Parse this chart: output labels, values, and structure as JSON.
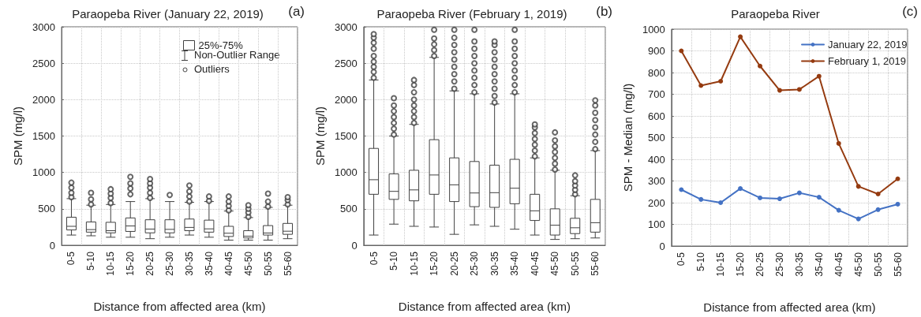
{
  "chart_data": [
    {
      "type": "box",
      "title": "Paraopeba River (January 22, 2019)",
      "xlabel": "Distance from affected area (km)",
      "ylabel": "SPM (mg/l)",
      "categories": [
        "0-5",
        "5-10",
        "10-15",
        "15-20",
        "20-25",
        "25-30",
        "30-35",
        "35-40",
        "40-45",
        "45-50",
        "50-55",
        "55-60"
      ],
      "ylim": [
        0,
        3000
      ],
      "yticks": [
        0,
        500,
        1000,
        1500,
        2000,
        2500,
        3000
      ],
      "grid": true,
      "legend": "top right",
      "annotations": [
        "(a)",
        "Non-Outlier Range",
        "Outliers"
      ],
      "series": [
        {
          "name": "25%-75%",
          "color": "#404040",
          "boxes": [
            {
              "low": 140,
              "q1": 210,
              "median": 260,
              "q3": 385,
              "high": 640,
              "outliers": [
                660,
                720,
                790,
                860
              ]
            },
            {
              "low": 130,
              "q1": 180,
              "median": 215,
              "q3": 320,
              "high": 550,
              "outliers": [
                560,
                630,
                720
              ]
            },
            {
              "low": 110,
              "q1": 170,
              "median": 200,
              "q3": 315,
              "high": 560,
              "outliers": [
                580,
                650,
                710,
                770
              ]
            },
            {
              "low": 110,
              "q1": 190,
              "median": 265,
              "q3": 375,
              "high": 600,
              "outliers": [
                700,
                780,
                850,
                940
              ]
            },
            {
              "low": 90,
              "q1": 170,
              "median": 222,
              "q3": 350,
              "high": 640,
              "outliers": [
                650,
                720,
                790,
                850,
                910
              ]
            },
            {
              "low": 110,
              "q1": 170,
              "median": 218,
              "q3": 350,
              "high": 600,
              "outliers": [
                690
              ]
            },
            {
              "low": 140,
              "q1": 200,
              "median": 245,
              "q3": 360,
              "high": 590,
              "outliers": [
                600,
                670,
                740,
                820
              ]
            },
            {
              "low": 110,
              "q1": 180,
              "median": 225,
              "q3": 345,
              "high": 600,
              "outliers": [
                610,
                670
              ]
            },
            {
              "low": 70,
              "q1": 120,
              "median": 165,
              "q3": 260,
              "high": 470,
              "outliers": [
                480,
                540,
                600,
                670
              ]
            },
            {
              "low": 70,
              "q1": 100,
              "median": 125,
              "q3": 200,
              "high": 380,
              "outliers": [
                390,
                450,
                500,
                550
              ]
            },
            {
              "low": 70,
              "q1": 140,
              "median": 168,
              "q3": 270,
              "high": 520,
              "outliers": [
                530,
                600,
                710
              ]
            },
            {
              "low": 90,
              "q1": 150,
              "median": 193,
              "q3": 300,
              "high": 550,
              "outliers": [
                560,
                620,
                660
              ]
            }
          ]
        }
      ]
    },
    {
      "type": "box",
      "title": "Paraopeba River (February 1, 2019)",
      "xlabel": "Distance from affected area (km)",
      "ylabel": "SPM (mg/l)",
      "categories": [
        "0-5",
        "5-10",
        "10-15",
        "15-20",
        "20-25",
        "25-30",
        "30-35",
        "35-40",
        "40-45",
        "45-50",
        "50-55",
        "55-60"
      ],
      "ylim": [
        0,
        3000
      ],
      "yticks": [
        0,
        500,
        1000,
        1500,
        2000,
        2500,
        3000
      ],
      "grid": true,
      "annotations": [
        "(b)"
      ],
      "series": [
        {
          "color": "#404040",
          "boxes": [
            {
              "low": 140,
              "q1": 700,
              "median": 900,
              "q3": 1330,
              "high": 2270,
              "outliers": [
                2300,
                2380,
                2450,
                2520,
                2600,
                2700,
                2780,
                2850,
                2900
              ]
            },
            {
              "low": 290,
              "q1": 630,
              "median": 740,
              "q3": 980,
              "high": 1500,
              "outliers": [
                1520,
                1600,
                1680,
                1760,
                1840,
                1920,
                2020
              ]
            },
            {
              "low": 260,
              "q1": 610,
              "median": 760,
              "q3": 1030,
              "high": 1660,
              "outliers": [
                1680,
                1760,
                1840,
                1920,
                2000,
                2100,
                2200,
                2270
              ]
            },
            {
              "low": 250,
              "q1": 700,
              "median": 965,
              "q3": 1450,
              "high": 2580,
              "outliers": [
                2600,
                2680,
                2760,
                2840,
                2960
              ]
            },
            {
              "low": 150,
              "q1": 600,
              "median": 830,
              "q3": 1200,
              "high": 2120,
              "outliers": [
                2150,
                2250,
                2350,
                2450,
                2550,
                2650,
                2750,
                2850,
                2960
              ]
            },
            {
              "low": 280,
              "q1": 530,
              "median": 718,
              "q3": 1150,
              "high": 2080,
              "outliers": [
                2100,
                2200,
                2300,
                2400,
                2500,
                2600,
                2700,
                2800,
                2960
              ]
            },
            {
              "low": 260,
              "q1": 520,
              "median": 722,
              "q3": 1100,
              "high": 1940,
              "outliers": [
                1960,
                2050,
                2150,
                2250,
                2350,
                2450,
                2550,
                2650,
                2750,
                2800
              ]
            },
            {
              "low": 220,
              "q1": 570,
              "median": 783,
              "q3": 1180,
              "high": 2080,
              "outliers": [
                2100,
                2200,
                2300,
                2400,
                2500,
                2600,
                2700,
                2800,
                2960
              ]
            },
            {
              "low": 140,
              "q1": 340,
              "median": 473,
              "q3": 700,
              "high": 1200,
              "outliers": [
                1220,
                1300,
                1380,
                1460,
                1540,
                1620,
                1660
              ]
            },
            {
              "low": 80,
              "q1": 140,
              "median": 275,
              "q3": 500,
              "high": 1030,
              "outliers": [
                1040,
                1120,
                1200,
                1280,
                1360,
                1440,
                1550
              ]
            },
            {
              "low": 90,
              "q1": 160,
              "median": 240,
              "q3": 370,
              "high": 680,
              "outliers": [
                700,
                760,
                820,
                880,
                960
              ]
            },
            {
              "low": 100,
              "q1": 180,
              "median": 310,
              "q3": 630,
              "high": 1300,
              "outliers": [
                1320,
                1420,
                1520,
                1620,
                1720,
                1820,
                1920,
                1990
              ]
            }
          ]
        }
      ]
    },
    {
      "type": "line",
      "title": "Paraopeba River",
      "xlabel": "Distance from affected area (km)",
      "ylabel": "SPM - Median (mg/l)",
      "categories": [
        "0-5",
        "5-10",
        "10-15",
        "15-20",
        "20-25",
        "25-30",
        "30-35",
        "35-40",
        "40-45",
        "45-50",
        "50-55",
        "55-60"
      ],
      "ylim": [
        0,
        1000
      ],
      "yticks": [
        0,
        100,
        200,
        300,
        400,
        500,
        600,
        700,
        800,
        900,
        1000
      ],
      "grid": true,
      "legend": "top right",
      "marker": "circle",
      "annotations": [
        "(c)"
      ],
      "series": [
        {
          "name": "January 22, 2019",
          "color": "#4472c4",
          "values": [
            260,
            215,
            200,
            265,
            222,
            218,
            245,
            225,
            165,
            125,
            168,
            193
          ]
        },
        {
          "name": "February 1, 2019",
          "color": "#953b10",
          "values": [
            900,
            740,
            760,
            965,
            830,
            718,
            722,
            783,
            473,
            275,
            240,
            310
          ]
        }
      ]
    }
  ]
}
